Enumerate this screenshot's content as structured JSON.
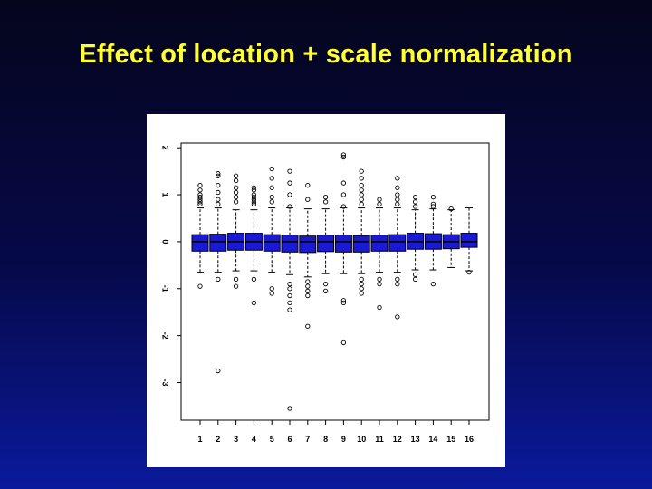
{
  "slide": {
    "title": "Effect of location + scale normalization"
  },
  "chart_data": {
    "type": "boxplot",
    "title": "",
    "xlabel": "",
    "ylabel": "",
    "ylim": [
      -3.8,
      2.1
    ],
    "yticks": [
      "2",
      "1",
      "0",
      "-1",
      "-2",
      "-3"
    ],
    "ytick_values": [
      2,
      1,
      0,
      -1,
      -2,
      -3
    ],
    "categories": [
      "1",
      "2",
      "3",
      "4",
      "5",
      "6",
      "7",
      "8",
      "9",
      "10",
      "11",
      "12",
      "13",
      "14",
      "15",
      "16"
    ],
    "box_color": "#1a1ad6",
    "boxes": [
      {
        "q1": -0.2,
        "median": 0.0,
        "q3": 0.15,
        "whisker_low": -0.65,
        "whisker_high": 0.72,
        "outliers": [
          1.2,
          1.1,
          1.0,
          0.95,
          0.9,
          0.85,
          0.8,
          -0.95
        ]
      },
      {
        "q1": -0.2,
        "median": 0.0,
        "q3": 0.16,
        "whisker_low": -0.65,
        "whisker_high": 0.72,
        "outliers": [
          1.45,
          1.4,
          1.2,
          1.05,
          0.9,
          0.8,
          -0.8,
          -2.75
        ]
      },
      {
        "q1": -0.18,
        "median": 0.0,
        "q3": 0.18,
        "whisker_low": -0.62,
        "whisker_high": 0.68,
        "outliers": [
          1.4,
          1.3,
          1.15,
          1.05,
          0.95,
          0.85,
          -0.8,
          -0.95
        ]
      },
      {
        "q1": -0.18,
        "median": 0.0,
        "q3": 0.18,
        "whisker_low": -0.62,
        "whisker_high": 0.68,
        "outliers": [
          1.15,
          1.1,
          1.0,
          0.95,
          0.9,
          0.85,
          0.8,
          -0.8,
          -1.3
        ]
      },
      {
        "q1": -0.2,
        "median": 0.0,
        "q3": 0.15,
        "whisker_low": -0.65,
        "whisker_high": 0.72,
        "outliers": [
          1.55,
          1.35,
          1.15,
          0.95,
          0.85,
          -1.0,
          -1.1
        ]
      },
      {
        "q1": -0.22,
        "median": 0.0,
        "q3": 0.14,
        "whisker_low": -0.7,
        "whisker_high": 0.72,
        "outliers": [
          1.5,
          1.25,
          1.0,
          0.75,
          -0.9,
          -1.0,
          -1.15,
          -1.3,
          -1.45,
          -3.55
        ]
      },
      {
        "q1": -0.23,
        "median": 0.0,
        "q3": 0.12,
        "whisker_low": -0.75,
        "whisker_high": 0.7,
        "outliers": [
          1.2,
          0.9,
          -0.85,
          -0.95,
          -1.05,
          -1.15,
          -1.8
        ]
      },
      {
        "q1": -0.21,
        "median": 0.0,
        "q3": 0.14,
        "whisker_low": -0.68,
        "whisker_high": 0.7,
        "outliers": [
          0.95,
          0.85,
          -0.9,
          -1.05
        ]
      },
      {
        "q1": -0.22,
        "median": 0.0,
        "q3": 0.14,
        "whisker_low": -0.68,
        "whisker_high": 0.72,
        "outliers": [
          1.85,
          1.8,
          1.25,
          1.0,
          0.75,
          -1.25,
          -1.3,
          -2.15
        ]
      },
      {
        "q1": -0.22,
        "median": 0.0,
        "q3": 0.13,
        "whisker_low": -0.68,
        "whisker_high": 0.72,
        "outliers": [
          1.5,
          1.35,
          1.2,
          1.1,
          1.0,
          0.9,
          0.8,
          -0.8,
          -0.9,
          -1.0,
          -1.1
        ]
      },
      {
        "q1": -0.2,
        "median": 0.0,
        "q3": 0.14,
        "whisker_low": -0.65,
        "whisker_high": 0.72,
        "outliers": [
          0.9,
          0.8,
          -0.8,
          -0.9,
          -1.4
        ]
      },
      {
        "q1": -0.2,
        "median": 0.0,
        "q3": 0.15,
        "whisker_low": -0.65,
        "whisker_high": 0.72,
        "outliers": [
          1.35,
          1.15,
          1.0,
          0.9,
          0.8,
          -0.8,
          -0.9,
          -1.6
        ]
      },
      {
        "q1": -0.16,
        "median": 0.0,
        "q3": 0.18,
        "whisker_low": -0.6,
        "whisker_high": 0.68,
        "outliers": [
          0.95,
          0.85,
          0.75,
          -0.7,
          -0.8
        ]
      },
      {
        "q1": -0.16,
        "median": 0.0,
        "q3": 0.17,
        "whisker_low": -0.6,
        "whisker_high": 0.7,
        "outliers": [
          0.95,
          0.8,
          0.75,
          -0.9
        ]
      },
      {
        "q1": -0.15,
        "median": 0.0,
        "q3": 0.15,
        "whisker_low": -0.55,
        "whisker_high": 0.68,
        "outliers": [
          0.7
        ]
      },
      {
        "q1": -0.12,
        "median": 0.0,
        "q3": 0.18,
        "whisker_low": -0.62,
        "whisker_high": 0.72,
        "outliers": [
          -0.65
        ]
      }
    ]
  }
}
